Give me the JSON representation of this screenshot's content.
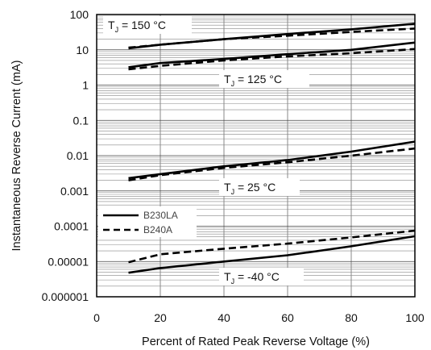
{
  "chart_data": {
    "type": "line",
    "xlabel": "Percent of Rated Peak Reverse Voltage (%)",
    "ylabel": "Instantaneous Reverse Current (mA)",
    "xlim": [
      0,
      100
    ],
    "ylim": [
      1e-06,
      100
    ],
    "yscale": "log",
    "grid": "on",
    "x_ticks": [
      "0",
      "20",
      "40",
      "60",
      "80",
      "100"
    ],
    "y_ticks": [
      "0.000001",
      "0.00001",
      "0.0001",
      "0.001",
      "0.01",
      "0.1",
      "1",
      "10",
      "100"
    ],
    "legend": {
      "placement": "middle-left",
      "entries": [
        {
          "label": "B230LA",
          "style": "solid"
        },
        {
          "label": "B240A",
          "style": "dashed"
        }
      ]
    },
    "annotations": [
      {
        "prefix": "T",
        "sub": "J",
        "text": " = 150 °C"
      },
      {
        "prefix": "T",
        "sub": "J",
        "text": " = 125 °C"
      },
      {
        "prefix": "T",
        "sub": "J",
        "text": " = 25 °C"
      },
      {
        "prefix": "T",
        "sub": "J",
        "text": " = -40 °C"
      }
    ],
    "series": [
      {
        "device": "B230LA",
        "temperature": "150 °C",
        "style": "solid",
        "x": [
          10,
          20,
          40,
          60,
          80,
          100
        ],
        "y": [
          11,
          14,
          20,
          28,
          38,
          55
        ]
      },
      {
        "device": "B240A",
        "temperature": "150 °C",
        "style": "dashed",
        "x": [
          10,
          20,
          40,
          60,
          80,
          100
        ],
        "y": [
          11.5,
          14,
          20,
          25,
          32,
          40
        ]
      },
      {
        "device": "B230LA",
        "temperature": "125 °C",
        "style": "solid",
        "x": [
          10,
          20,
          40,
          60,
          80,
          100
        ],
        "y": [
          3.2,
          4.2,
          5.5,
          7.5,
          10,
          16
        ]
      },
      {
        "device": "B240A",
        "temperature": "125 °C",
        "style": "dashed",
        "x": [
          10,
          20,
          40,
          60,
          80,
          100
        ],
        "y": [
          2.8,
          3.5,
          5,
          6.5,
          8,
          10.5
        ]
      },
      {
        "device": "B230LA",
        "temperature": "25 °C",
        "style": "solid",
        "x": [
          10,
          20,
          40,
          60,
          80,
          100
        ],
        "y": [
          0.0023,
          0.003,
          0.005,
          0.0075,
          0.013,
          0.025
        ]
      },
      {
        "device": "B240A",
        "temperature": "25 °C",
        "style": "dashed",
        "x": [
          10,
          20,
          40,
          60,
          80,
          100
        ],
        "y": [
          0.002,
          0.0028,
          0.0045,
          0.0065,
          0.01,
          0.016
        ]
      },
      {
        "device": "B230LA",
        "temperature": "-40 °C",
        "style": "solid",
        "x": [
          10,
          20,
          40,
          60,
          80,
          100
        ],
        "y": [
          4.8e-06,
          6.5e-06,
          1e-05,
          1.5e-05,
          2.7e-05,
          5.2e-05
        ]
      },
      {
        "device": "B240A",
        "temperature": "-40 °C",
        "style": "dashed",
        "x": [
          10,
          20,
          40,
          60,
          80,
          100
        ],
        "y": [
          9.5e-06,
          1.6e-05,
          2.3e-05,
          3.2e-05,
          4.8e-05,
          7.5e-05
        ]
      }
    ]
  }
}
